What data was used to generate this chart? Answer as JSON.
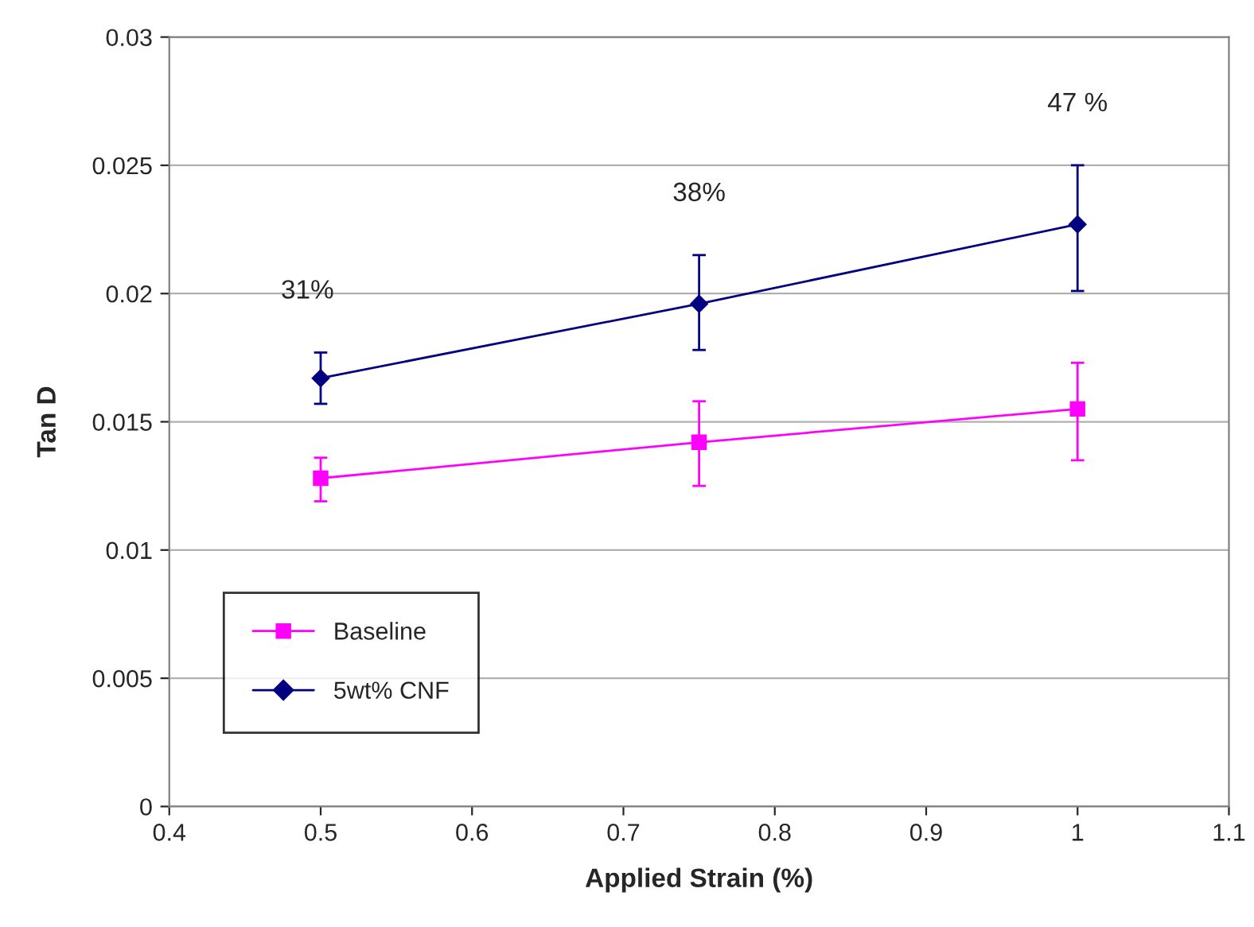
{
  "chart_data": {
    "type": "line",
    "xlabel": "Applied Strain (%)",
    "ylabel": "Tan D",
    "xlim": [
      0.4,
      1.1
    ],
    "xticks": [
      0.4,
      0.5,
      0.6,
      0.7,
      0.8,
      0.9,
      1,
      1.1
    ],
    "ylim": [
      0,
      0.03
    ],
    "yticks": [
      0,
      0.005,
      0.01,
      0.015,
      0.02,
      0.025,
      0.03
    ],
    "grid": "y",
    "legend": "bottom left",
    "series": [
      {
        "name": "Baseline",
        "color": "#ff00ff",
        "marker": "square",
        "x": [
          0.5,
          0.75,
          1
        ],
        "values": [
          0.0128,
          0.0142,
          0.0155
        ],
        "errors": [
          [
            0.0119,
            0.0136
          ],
          [
            0.0125,
            0.0158
          ],
          [
            0.0135,
            0.0173
          ]
        ]
      },
      {
        "name": "5wt% CNF",
        "color": "#000080",
        "marker": "diamond",
        "x": [
          0.5,
          0.75,
          1
        ],
        "values": [
          0.0167,
          0.0196,
          0.0227
        ],
        "errors": [
          [
            0.0157,
            0.0177
          ],
          [
            0.0178,
            0.0215
          ],
          [
            0.0201,
            0.025
          ]
        ]
      }
    ],
    "annotations": [
      "31%",
      "38%",
      "47 %"
    ]
  }
}
